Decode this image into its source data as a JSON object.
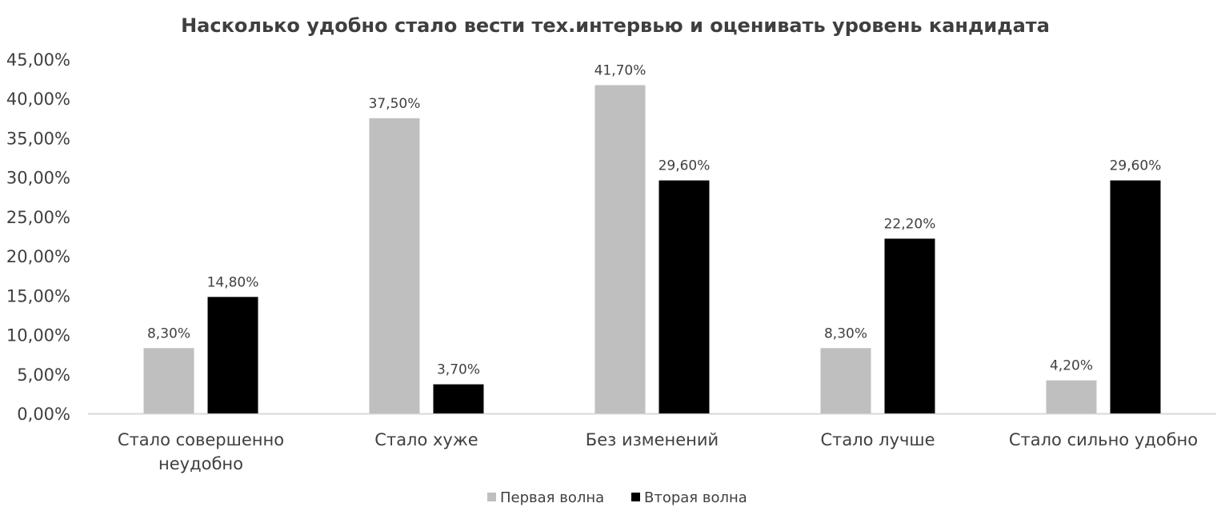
{
  "chart_data": {
    "type": "bar",
    "title": "Насколько удобно стало вести тех.интервью и оценивать уровень кандидата",
    "categories": [
      [
        "Стало совершенно",
        "неудобно"
      ],
      [
        "Стало хуже"
      ],
      [
        "Без изменений"
      ],
      [
        "Стало лучше"
      ],
      [
        "Стало сильно удобно"
      ]
    ],
    "series": [
      {
        "name": "Первая волна",
        "color": "#bfbfbf",
        "values": [
          8.3,
          37.5,
          41.7,
          8.3,
          4.2
        ],
        "labels": [
          "8,30%",
          "37,50%",
          "41,70%",
          "8,30%",
          "4,20%"
        ]
      },
      {
        "name": "Вторая волна",
        "color": "#000000",
        "values": [
          14.8,
          3.7,
          29.6,
          22.2,
          29.6
        ],
        "labels": [
          "14,80%",
          "3,70%",
          "29,60%",
          "22,20%",
          "29,60%"
        ]
      }
    ],
    "ylim": [
      0,
      45
    ],
    "yticks": [
      "0,00%",
      "5,00%",
      "10,00%",
      "15,00%",
      "20,00%",
      "25,00%",
      "30,00%",
      "35,00%",
      "40,00%",
      "45,00%"
    ],
    "xlabel": "",
    "ylabel": "",
    "grid": false,
    "legend_position": "bottom",
    "axis_color": "#d9d9d9"
  }
}
